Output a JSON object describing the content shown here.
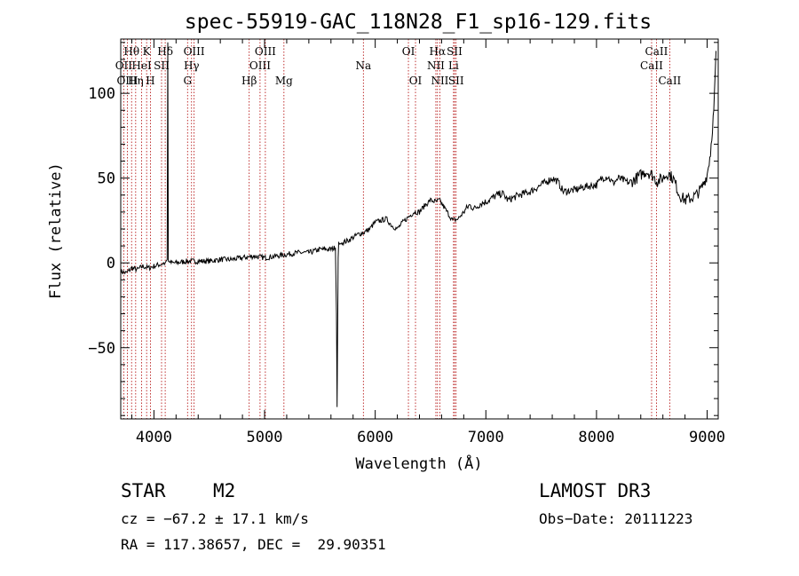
{
  "chart_data": {
    "type": "line",
    "title": "spec-55919-GAC_118N28_F1_sp16-129.fits",
    "xlabel": "Wavelength (Å)",
    "ylabel": "Flux (relative)",
    "xlim": [
      3700,
      9100
    ],
    "ylim": [
      -92,
      132
    ],
    "xticks": [
      4000,
      5000,
      6000,
      7000,
      8000,
      9000
    ],
    "yticks": [
      -50,
      0,
      50,
      100
    ],
    "grid": false,
    "spectrum": {
      "wavelength": [
        3700,
        3750,
        3800,
        3850,
        3900,
        3950,
        4000,
        4050,
        4100,
        4120,
        4125,
        4130,
        4150,
        4200,
        4300,
        4400,
        4500,
        4600,
        4700,
        4800,
        4900,
        5000,
        5100,
        5200,
        5300,
        5400,
        5500,
        5600,
        5640,
        5650,
        5655,
        5660,
        5665,
        5670,
        5680,
        5700,
        5750,
        5800,
        5850,
        5900,
        5950,
        6000,
        6050,
        6100,
        6150,
        6200,
        6250,
        6300,
        6350,
        6400,
        6450,
        6500,
        6550,
        6580,
        6620,
        6700,
        6750,
        6800,
        6850,
        6900,
        6950,
        7000,
        7050,
        7100,
        7150,
        7200,
        7300,
        7400,
        7500,
        7600,
        7650,
        7700,
        7800,
        7900,
        8000,
        8050,
        8100,
        8150,
        8200,
        8300,
        8400,
        8450,
        8500,
        8550,
        8600,
        8650,
        8700,
        8750,
        8800,
        8850,
        8900,
        8950,
        9000,
        9030,
        9060,
        9080
      ],
      "flux": [
        -5,
        -6,
        -3,
        -4,
        -2,
        -3,
        -2,
        -1,
        0,
        2,
        130,
        1,
        0,
        0,
        1,
        1,
        1,
        2,
        2,
        3,
        4,
        3,
        4,
        5,
        6,
        6,
        8,
        8,
        9,
        -30,
        -85,
        -40,
        3,
        12,
        11,
        12,
        13,
        15,
        17,
        18,
        20,
        24,
        25,
        26,
        22,
        20,
        24,
        27,
        30,
        30,
        34,
        37,
        36,
        37,
        33,
        25,
        26,
        30,
        34,
        32,
        35,
        36,
        38,
        40,
        41,
        37,
        40,
        42,
        46,
        50,
        48,
        42,
        43,
        45,
        46,
        50,
        51,
        47,
        50,
        47,
        52,
        54,
        52,
        48,
        50,
        53,
        49,
        40,
        37,
        38,
        40,
        44,
        52,
        65,
        90,
        125
      ]
    },
    "emission_lines": [
      {
        "label": "Hθ",
        "x": 3798,
        "row": 0
      },
      {
        "label": "OII",
        "x": 3727,
        "row": 1
      },
      {
        "label": "OIII",
        "x": 3760,
        "row": 2
      },
      {
        "label": "K",
        "x": 3934,
        "row": 0
      },
      {
        "label": "HeI",
        "x": 3889,
        "row": 1
      },
      {
        "label": "Hη",
        "x": 3835,
        "row": 2
      },
      {
        "label": "SII",
        "x": 4069,
        "row": 1
      },
      {
        "label": "H",
        "x": 3968,
        "row": 2
      },
      {
        "label": "Hδ",
        "x": 4102,
        "row": 0
      },
      {
        "label": "OIII",
        "x": 4363,
        "row": 0
      },
      {
        "label": "Hγ",
        "x": 4340,
        "row": 1
      },
      {
        "label": "G",
        "x": 4304,
        "row": 2
      },
      {
        "label": "OIII",
        "x": 5007,
        "row": 0
      },
      {
        "label": "OIII",
        "x": 4959,
        "row": 1
      },
      {
        "label": "Hβ",
        "x": 4861,
        "row": 2
      },
      {
        "label": "Mg",
        "x": 5175,
        "row": 2
      },
      {
        "label": "Na",
        "x": 5893,
        "row": 1
      },
      {
        "label": "OI",
        "x": 6300,
        "row": 0
      },
      {
        "label": "OI",
        "x": 6364,
        "row": 2
      },
      {
        "label": "Hα",
        "x": 6563,
        "row": 0
      },
      {
        "label": "SII",
        "x": 6717,
        "row": 0
      },
      {
        "label": "NII",
        "x": 6548,
        "row": 1
      },
      {
        "label": "Li",
        "x": 6708,
        "row": 1
      },
      {
        "label": "NII",
        "x": 6584,
        "row": 2
      },
      {
        "label": "SII",
        "x": 6731,
        "row": 2
      },
      {
        "label": "CaII",
        "x": 8542,
        "row": 0
      },
      {
        "label": "CaII",
        "x": 8498,
        "row": 1
      },
      {
        "label": "CaII",
        "x": 8662,
        "row": 2
      }
    ]
  },
  "info": {
    "object_class": "STAR",
    "subclass": "M2",
    "survey": "LAMOST DR3",
    "cz": "cz = −67.2 ± 17.1 km/s",
    "obs_date": "Obs−Date: 20111223",
    "coords": "RA = 117.38657, DEC =  29.90351"
  }
}
